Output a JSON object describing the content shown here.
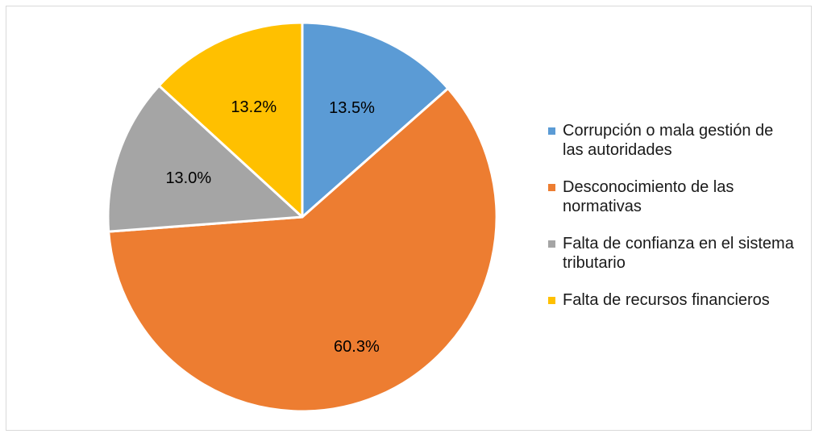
{
  "chart_data": {
    "type": "pie",
    "title": "",
    "start_angle_deg": 0,
    "direction": "clockwise",
    "legend_position": "right",
    "slices": [
      {
        "label": "Corrupción o mala gestión de las autoridades",
        "value": 13.5,
        "display": "13.5%",
        "color": "#5b9bd5"
      },
      {
        "label": "Desconocimiento de las normativas",
        "value": 60.3,
        "display": "60.3%",
        "color": "#ed7d31"
      },
      {
        "label": "Falta de confianza en el sistema tributario",
        "value": 13.0,
        "display": "13.0%",
        "color": "#a5a5a5"
      },
      {
        "label": "Falta de recursos financieros",
        "value": 13.2,
        "display": "13.2%",
        "color": "#ffc000"
      }
    ]
  }
}
